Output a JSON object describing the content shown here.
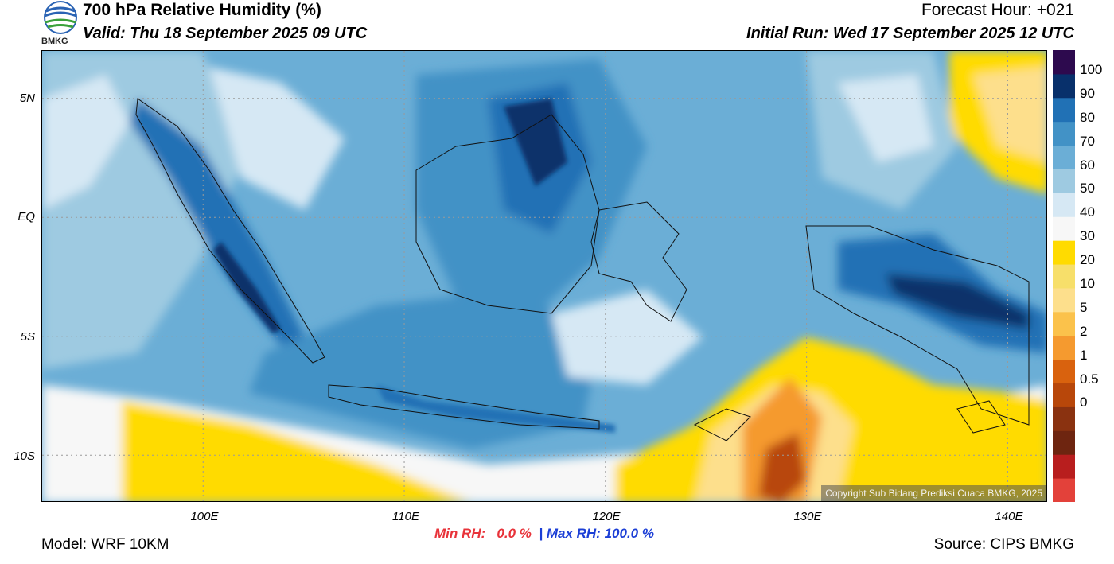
{
  "header": {
    "title": "700 hPa Relative Humidity (%)",
    "valid": "Valid: Thu 18 September 2025 09 UTC",
    "forecast_hour": "Forecast Hour: +021",
    "initial_run": "Initial Run: Wed 17 September 2025 12 UTC"
  },
  "logo": {
    "text": "BMKG",
    "icon": "bmkg-logo-icon"
  },
  "map": {
    "lat_labels": [
      "5N",
      "EQ",
      "5S",
      "10S"
    ],
    "lon_labels": [
      "100E",
      "110E",
      "120E",
      "130E",
      "140E"
    ],
    "lat_range": [
      -12,
      7
    ],
    "lon_range": [
      92,
      142
    ],
    "copyright": "Copyright Sub Bidang Prediksi Cuaca BMKG, 2025"
  },
  "legend": {
    "labels": [
      "100",
      "90",
      "80",
      "70",
      "60",
      "50",
      "40",
      "30",
      "20",
      "10",
      "5",
      "2",
      "1",
      "0.5",
      "0"
    ],
    "colors": [
      "#e3413a",
      "#b81e1e",
      "#6e2510",
      "#8a3210",
      "#b8470a",
      "#d9620e",
      "#f59a2f",
      "#fbc24b",
      "#fddf8c",
      "#f7df6a",
      "#ffdb00",
      "#f7f7f7",
      "#d6e8f4",
      "#9ecae1",
      "#6baed6",
      "#4292c6",
      "#2171b5",
      "#08306b",
      "#2d0a4e"
    ]
  },
  "stats": {
    "min_label": "Min RH:",
    "min_value": "0.0 %",
    "separator": "|",
    "max_label": "Max RH:",
    "max_value": "100.0 %"
  },
  "footer": {
    "model": "Model: WRF 10KM",
    "source": "Source: CIPS BMKG"
  }
}
